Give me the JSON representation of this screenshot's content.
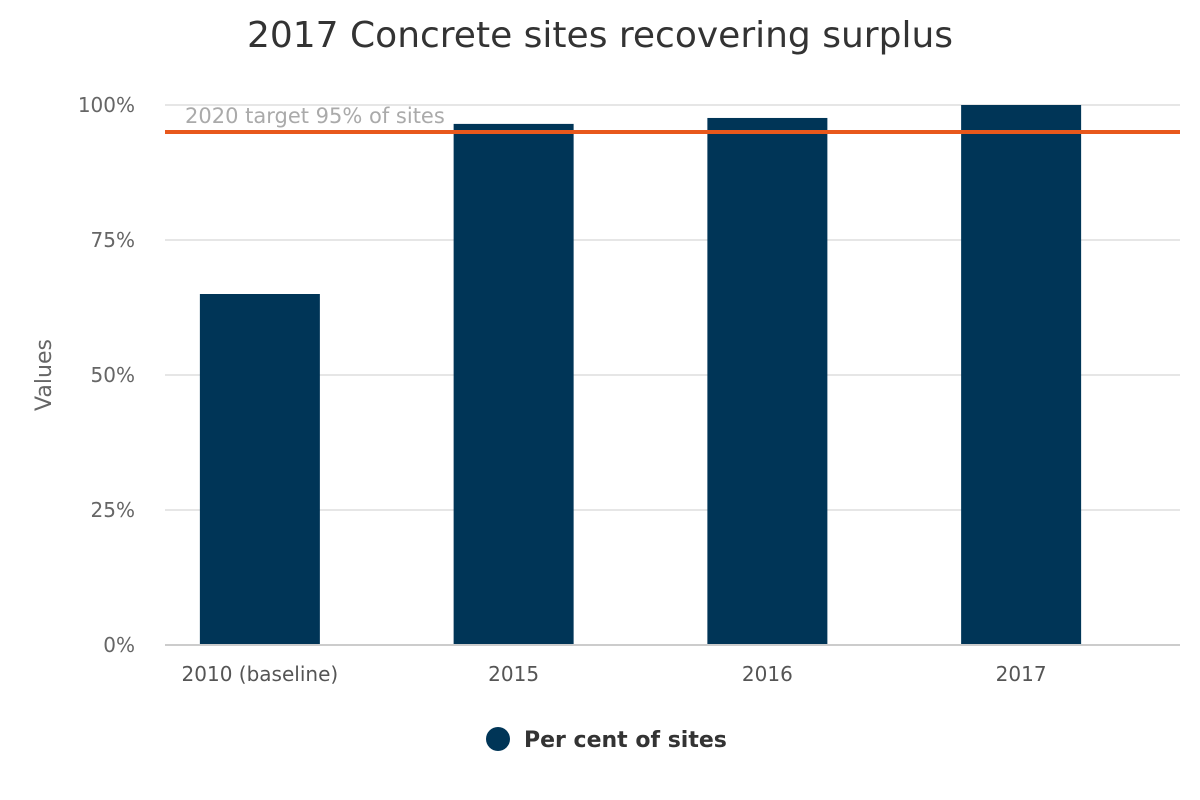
{
  "chart_data": {
    "type": "bar",
    "title": "2017 Concrete sites recovering surplus",
    "xlabel": "",
    "ylabel": "Values",
    "categories": [
      "2010 (baseline)",
      "2015",
      "2016",
      "2017"
    ],
    "series": [
      {
        "name": "Per cent of sites",
        "values": [
          65,
          96.5,
          97.6,
          100
        ],
        "color": "#003557"
      }
    ],
    "ylim": [
      0,
      100
    ],
    "yticks": [
      0,
      25,
      50,
      75,
      100
    ],
    "ytick_labels": [
      "0%",
      "25%",
      "50%",
      "75%",
      "100%"
    ],
    "grid": true,
    "legend": "bottom-center",
    "plot_line": {
      "value": 95,
      "label": "2020 target 95% of sites",
      "color": "#e8581c"
    }
  }
}
